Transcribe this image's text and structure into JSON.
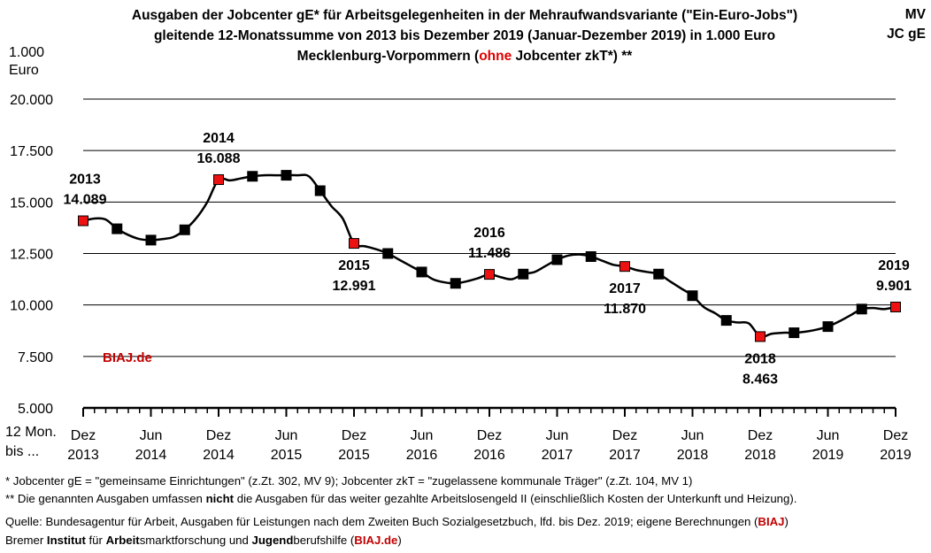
{
  "title": {
    "line1": "Ausgaben der Jobcenter gE* für Arbeitsgelegenheiten in der Mehraufwandsvariante (\"Ein-Euro-Jobs\")",
    "line2": "gleitende 12-Monatssumme von 2013 bis Dezember 2019 (Januar-Dezember 2019) in 1.000 Euro",
    "line3_pre": "Mecklenburg-Vorpommern (",
    "line3_red": "ohne",
    "line3_post": " Jobcenter zkT*) **"
  },
  "corner": {
    "line1": "MV",
    "line2": "JC gE"
  },
  "unit": {
    "line1": "1.000",
    "line2": "Euro"
  },
  "x_caption": {
    "line1": "12 Mon.",
    "line2": "bis ..."
  },
  "watermark": "BIAJ.de",
  "footnotes": {
    "f1": "*   Jobcenter gE = \"gemeinsame Einrichtungen\" (z.Zt. 302, MV 9); Jobcenter zkT = \"zugelassene kommunale Träger\" (z.Zt. 104, MV 1)",
    "f2_pre": "** Die genannten Ausgaben umfassen ",
    "f2_bold": "nicht",
    "f2_post": " die Ausgaben für das weiter gezahlte Arbeitslosengeld II (einschließlich Kosten der Unterkunft und Heizung).",
    "f3_pre": "Quelle: Bundesagentur für Arbeit, Ausgaben für Leistungen nach dem Zweiten Buch Sozialgesetzbuch, lfd. bis Dez. 2019; eigene Berechnungen (",
    "f3_red": "BIAJ",
    "f3_post": ")",
    "f4_a": "Bremer ",
    "f4_b": "Institut",
    "f4_c": " für ",
    "f4_d": "Arbeit",
    "f4_e": "smarktforschung und ",
    "f4_f": "Jugend",
    "f4_g": "berufshilfe (",
    "f4_h": "BIAJ.de",
    "f4_i": ")"
  },
  "colors": {
    "line": "#000000",
    "marker": "#000000",
    "highlight": "#ee1111",
    "grid": "#000000",
    "brand_red": "#c00000"
  },
  "chart_data": {
    "type": "line",
    "title": "Ausgaben der Jobcenter gE* für Arbeitsgelegenheiten in der Mehraufwandsvariante (\"Ein-Euro-Jobs\")",
    "ylabel": "1.000 Euro",
    "ylim": [
      5000,
      20000
    ],
    "yticks": [
      5000,
      7500,
      10000,
      12500,
      15000,
      17500,
      20000
    ],
    "ytick_labels": [
      "5.000",
      "7.500",
      "10.000",
      "12.500",
      "15.000",
      "17.500",
      "20.000"
    ],
    "grid": true,
    "xtick_labels": [
      [
        "Dez",
        "2013"
      ],
      [
        "Jun",
        "2014"
      ],
      [
        "Dez",
        "2014"
      ],
      [
        "Jun",
        "2015"
      ],
      [
        "Dez",
        "2015"
      ],
      [
        "Jun",
        "2016"
      ],
      [
        "Dez",
        "2016"
      ],
      [
        "Jun",
        "2017"
      ],
      [
        "Dez",
        "2017"
      ],
      [
        "Jun",
        "2018"
      ],
      [
        "Dez",
        "2018"
      ],
      [
        "Jun",
        "2019"
      ],
      [
        "Dez",
        "2019"
      ]
    ],
    "months": [
      "2013-12",
      "2014-01",
      "2014-02",
      "2014-03",
      "2014-04",
      "2014-05",
      "2014-06",
      "2014-07",
      "2014-08",
      "2014-09",
      "2014-10",
      "2014-11",
      "2014-12",
      "2015-01",
      "2015-02",
      "2015-03",
      "2015-04",
      "2015-05",
      "2015-06",
      "2015-07",
      "2015-08",
      "2015-09",
      "2015-10",
      "2015-11",
      "2015-12",
      "2016-01",
      "2016-02",
      "2016-03",
      "2016-04",
      "2016-05",
      "2016-06",
      "2016-07",
      "2016-08",
      "2016-09",
      "2016-10",
      "2016-11",
      "2016-12",
      "2017-01",
      "2017-02",
      "2017-03",
      "2017-04",
      "2017-05",
      "2017-06",
      "2017-07",
      "2017-08",
      "2017-09",
      "2017-10",
      "2017-11",
      "2017-12",
      "2018-01",
      "2018-02",
      "2018-03",
      "2018-04",
      "2018-05",
      "2018-06",
      "2018-07",
      "2018-08",
      "2018-09",
      "2018-10",
      "2018-11",
      "2018-12",
      "2019-01",
      "2019-02",
      "2019-03",
      "2019-04",
      "2019-05",
      "2019-06",
      "2019-07",
      "2019-08",
      "2019-09",
      "2019-10",
      "2019-11",
      "2019-12"
    ],
    "series": [
      {
        "values": [
          14089,
          14200,
          14150,
          13700,
          13400,
          13200,
          13150,
          13200,
          13300,
          13650,
          14200,
          15000,
          16088,
          16050,
          16150,
          16250,
          16300,
          16300,
          16300,
          16300,
          16250,
          15550,
          14800,
          14200,
          12991,
          12850,
          12700,
          12500,
          12200,
          11900,
          11600,
          11250,
          11100,
          11050,
          11150,
          11300,
          11486,
          11350,
          11250,
          11500,
          11600,
          11900,
          12200,
          12400,
          12450,
          12350,
          12150,
          11950,
          11870,
          11700,
          11600,
          11500,
          11150,
          10800,
          10450,
          9900,
          9600,
          9250,
          9150,
          9100,
          8463,
          8600,
          8650,
          8650,
          8700,
          8800,
          8950,
          9200,
          9500,
          9800,
          9850,
          9800,
          9901
        ],
        "markers_every": 3
      }
    ],
    "highlighted": [
      {
        "index": 0,
        "year": "2013",
        "value_label": "14.089"
      },
      {
        "index": 12,
        "year": "2014",
        "value_label": "16.088"
      },
      {
        "index": 24,
        "year": "2015",
        "value_label": "12.991"
      },
      {
        "index": 36,
        "year": "2016",
        "value_label": "11.486"
      },
      {
        "index": 48,
        "year": "2017",
        "value_label": "11.870"
      },
      {
        "index": 60,
        "year": "2018",
        "value_label": "8.463"
      },
      {
        "index": 72,
        "year": "2019",
        "value_label": "9.901"
      }
    ]
  }
}
